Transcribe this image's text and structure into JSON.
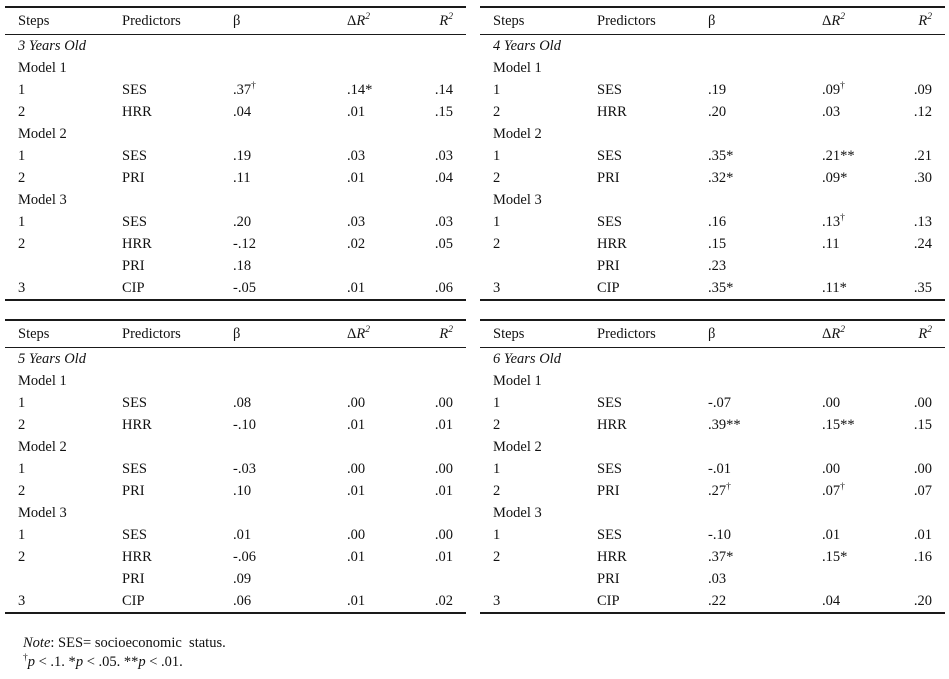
{
  "headers": {
    "steps": "Steps",
    "predictors": "Predictors",
    "beta": "β",
    "delta": "Δ",
    "r": "R",
    "sup2": "2"
  },
  "tables": [
    {
      "group": "3 Years Old",
      "rows": [
        {
          "type": "group",
          "label": "3 Years Old"
        },
        {
          "type": "model",
          "label": "Model 1"
        },
        {
          "type": "data",
          "step": "1",
          "predictor": "SES",
          "beta": ".37",
          "beta_sup": "†",
          "dr2": ".14*",
          "dr2_sup": "",
          "r2": ".14"
        },
        {
          "type": "data",
          "step": "2",
          "predictor": "HRR",
          "beta": ".04",
          "beta_sup": "",
          "dr2": ".01",
          "dr2_sup": "",
          "r2": ".15"
        },
        {
          "type": "model",
          "label": "Model 2"
        },
        {
          "type": "data",
          "step": "1",
          "predictor": "SES",
          "beta": ".19",
          "beta_sup": "",
          "dr2": ".03",
          "dr2_sup": "",
          "r2": ".03"
        },
        {
          "type": "data",
          "step": "2",
          "predictor": "PRI",
          "beta": ".11",
          "beta_sup": "",
          "dr2": ".01",
          "dr2_sup": "",
          "r2": ".04"
        },
        {
          "type": "model",
          "label": "Model 3"
        },
        {
          "type": "data",
          "step": "1",
          "predictor": "SES",
          "beta": ".20",
          "beta_sup": "",
          "dr2": ".03",
          "dr2_sup": "",
          "r2": ".03"
        },
        {
          "type": "data",
          "step": "2",
          "predictor": "HRR",
          "beta": "-.12",
          "beta_sup": "",
          "dr2": ".02",
          "dr2_sup": "",
          "r2": ".05"
        },
        {
          "type": "data",
          "step": "",
          "predictor": "PRI",
          "beta": ".18",
          "beta_sup": "",
          "dr2": "",
          "dr2_sup": "",
          "r2": ""
        },
        {
          "type": "data",
          "step": "3",
          "predictor": "CIP",
          "beta": "-.05",
          "beta_sup": "",
          "dr2": ".01",
          "dr2_sup": "",
          "r2": ".06"
        }
      ]
    },
    {
      "group": "4 Years Old",
      "rows": [
        {
          "type": "group",
          "label": "4 Years Old"
        },
        {
          "type": "model",
          "label": "Model 1"
        },
        {
          "type": "data",
          "step": "1",
          "predictor": "SES",
          "beta": ".19",
          "beta_sup": "",
          "dr2": ".09",
          "dr2_sup": "†",
          "r2": ".09"
        },
        {
          "type": "data",
          "step": "2",
          "predictor": "HRR",
          "beta": ".20",
          "beta_sup": "",
          "dr2": ".03",
          "dr2_sup": "",
          "r2": ".12"
        },
        {
          "type": "model",
          "label": "Model 2"
        },
        {
          "type": "data",
          "step": "1",
          "predictor": "SES",
          "beta": ".35*",
          "beta_sup": "",
          "dr2": ".21**",
          "dr2_sup": "",
          "r2": ".21"
        },
        {
          "type": "data",
          "step": "2",
          "predictor": "PRI",
          "beta": ".32*",
          "beta_sup": "",
          "dr2": ".09*",
          "dr2_sup": "",
          "r2": ".30"
        },
        {
          "type": "model",
          "label": "Model 3"
        },
        {
          "type": "data",
          "step": "1",
          "predictor": "SES",
          "beta": ".16",
          "beta_sup": "",
          "dr2": ".13",
          "dr2_sup": "†",
          "r2": ".13"
        },
        {
          "type": "data",
          "step": "2",
          "predictor": "HRR",
          "beta": ".15",
          "beta_sup": "",
          "dr2": ".11",
          "dr2_sup": "",
          "r2": ".24"
        },
        {
          "type": "data",
          "step": "",
          "predictor": "PRI",
          "beta": ".23",
          "beta_sup": "",
          "dr2": "",
          "dr2_sup": "",
          "r2": ""
        },
        {
          "type": "data",
          "step": "3",
          "predictor": "CIP",
          "beta": ".35*",
          "beta_sup": "",
          "dr2": ".11*",
          "dr2_sup": "",
          "r2": ".35"
        }
      ]
    },
    {
      "group": "5 Years Old",
      "rows": [
        {
          "type": "group",
          "label": "5 Years Old"
        },
        {
          "type": "model",
          "label": "Model 1"
        },
        {
          "type": "data",
          "step": "1",
          "predictor": "SES",
          "beta": ".08",
          "beta_sup": "",
          "dr2": ".00",
          "dr2_sup": "",
          "r2": ".00"
        },
        {
          "type": "data",
          "step": "2",
          "predictor": "HRR",
          "beta": "-.10",
          "beta_sup": "",
          "dr2": ".01",
          "dr2_sup": "",
          "r2": ".01"
        },
        {
          "type": "model",
          "label": "Model 2"
        },
        {
          "type": "data",
          "step": "1",
          "predictor": "SES",
          "beta": "-.03",
          "beta_sup": "",
          "dr2": ".00",
          "dr2_sup": "",
          "r2": ".00"
        },
        {
          "type": "data",
          "step": "2",
          "predictor": "PRI",
          "beta": ".10",
          "beta_sup": "",
          "dr2": ".01",
          "dr2_sup": "",
          "r2": ".01"
        },
        {
          "type": "model",
          "label": "Model 3"
        },
        {
          "type": "data",
          "step": "1",
          "predictor": "SES",
          "beta": ".01",
          "beta_sup": "",
          "dr2": ".00",
          "dr2_sup": "",
          "r2": ".00"
        },
        {
          "type": "data",
          "step": "2",
          "predictor": "HRR",
          "beta": "-.06",
          "beta_sup": "",
          "dr2": ".01",
          "dr2_sup": "",
          "r2": ".01"
        },
        {
          "type": "data",
          "step": "",
          "predictor": "PRI",
          "beta": ".09",
          "beta_sup": "",
          "dr2": "",
          "dr2_sup": "",
          "r2": ""
        },
        {
          "type": "data",
          "step": "3",
          "predictor": "CIP",
          "beta": ".06",
          "beta_sup": "",
          "dr2": ".01",
          "dr2_sup": "",
          "r2": ".02"
        }
      ]
    },
    {
      "group": "6 Years Old",
      "rows": [
        {
          "type": "group",
          "label": "6 Years Old"
        },
        {
          "type": "model",
          "label": "Model 1"
        },
        {
          "type": "data",
          "step": "1",
          "predictor": "SES",
          "beta": "-.07",
          "beta_sup": "",
          "dr2": ".00",
          "dr2_sup": "",
          "r2": ".00"
        },
        {
          "type": "data",
          "step": "2",
          "predictor": "HRR",
          "beta": ".39**",
          "beta_sup": "",
          "dr2": ".15**",
          "dr2_sup": "",
          "r2": ".15"
        },
        {
          "type": "model",
          "label": "Model 2"
        },
        {
          "type": "data",
          "step": "1",
          "predictor": "SES",
          "beta": "-.01",
          "beta_sup": "",
          "dr2": ".00",
          "dr2_sup": "",
          "r2": ".00"
        },
        {
          "type": "data",
          "step": "2",
          "predictor": "PRI",
          "beta": ".27",
          "beta_sup": "†",
          "dr2": ".07",
          "dr2_sup": "†",
          "r2": ".07"
        },
        {
          "type": "model",
          "label": "Model 3"
        },
        {
          "type": "data",
          "step": "1",
          "predictor": "SES",
          "beta": "-.10",
          "beta_sup": "",
          "dr2": ".01",
          "dr2_sup": "",
          "r2": ".01"
        },
        {
          "type": "data",
          "step": "2",
          "predictor": "HRR",
          "beta": ".37*",
          "beta_sup": "",
          "dr2": ".15*",
          "dr2_sup": "",
          "r2": ".16"
        },
        {
          "type": "data",
          "step": "",
          "predictor": "PRI",
          "beta": ".03",
          "beta_sup": "",
          "dr2": "",
          "dr2_sup": "",
          "r2": ""
        },
        {
          "type": "data",
          "step": "3",
          "predictor": "CIP",
          "beta": ".22",
          "beta_sup": "",
          "dr2": ".04",
          "dr2_sup": "",
          "r2": ".20"
        }
      ]
    }
  ],
  "note": {
    "prefix": "Note",
    "body": ": SES= socioeconomic  status.",
    "sig": {
      "dagger": "†",
      "p": "p",
      "s1": " < .1. *",
      "s2": " < .05. **",
      "s3": " < .01."
    }
  },
  "colors": {
    "rule": "#1a1a1a",
    "text": "#111111",
    "background": "#ffffff"
  }
}
